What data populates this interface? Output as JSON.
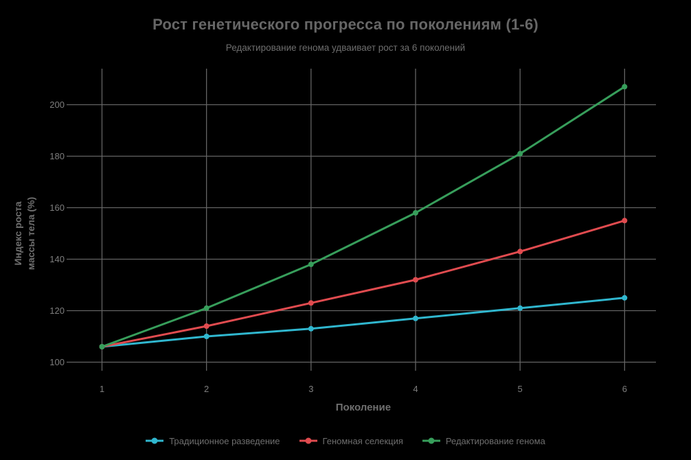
{
  "chart_data": {
    "type": "line",
    "title": "Рост генетического прогресса по поколениям (1-6)",
    "subtitle": "Редактирование генома удваивает рост за 6 поколений",
    "xlabel": "Поколение",
    "ylabel_lines": [
      "Индекс роста",
      "массы тела (%)"
    ],
    "x": [
      1,
      2,
      3,
      4,
      5,
      6
    ],
    "x_tick_labels": [
      "1",
      "2",
      "3",
      "4",
      "5",
      "6"
    ],
    "y_ticks": [
      100,
      120,
      140,
      160,
      180,
      200
    ],
    "xlim": [
      0.78,
      6.3
    ],
    "ylim": [
      98,
      214
    ],
    "grid": true,
    "legend_position": "bottom",
    "series": [
      {
        "name": "Традиционное разведение",
        "color": "#30b7cf",
        "values": [
          106,
          110,
          113,
          117,
          121,
          125
        ]
      },
      {
        "name": "Геномная селекция",
        "color": "#e04b4f",
        "values": [
          106,
          114,
          123,
          132,
          143,
          155
        ]
      },
      {
        "name": "Редактирование генома",
        "color": "#379e5b",
        "values": [
          106,
          121,
          138,
          158,
          181,
          207
        ]
      }
    ],
    "colors": {
      "background": "#000000",
      "grid": "#646464",
      "tick_labels": "#7e7e7e",
      "axis_titles": "#6f6f6f",
      "title": "#666666",
      "subtitle": "#6e6e6e",
      "legend_text": "#6e6e6e"
    }
  }
}
